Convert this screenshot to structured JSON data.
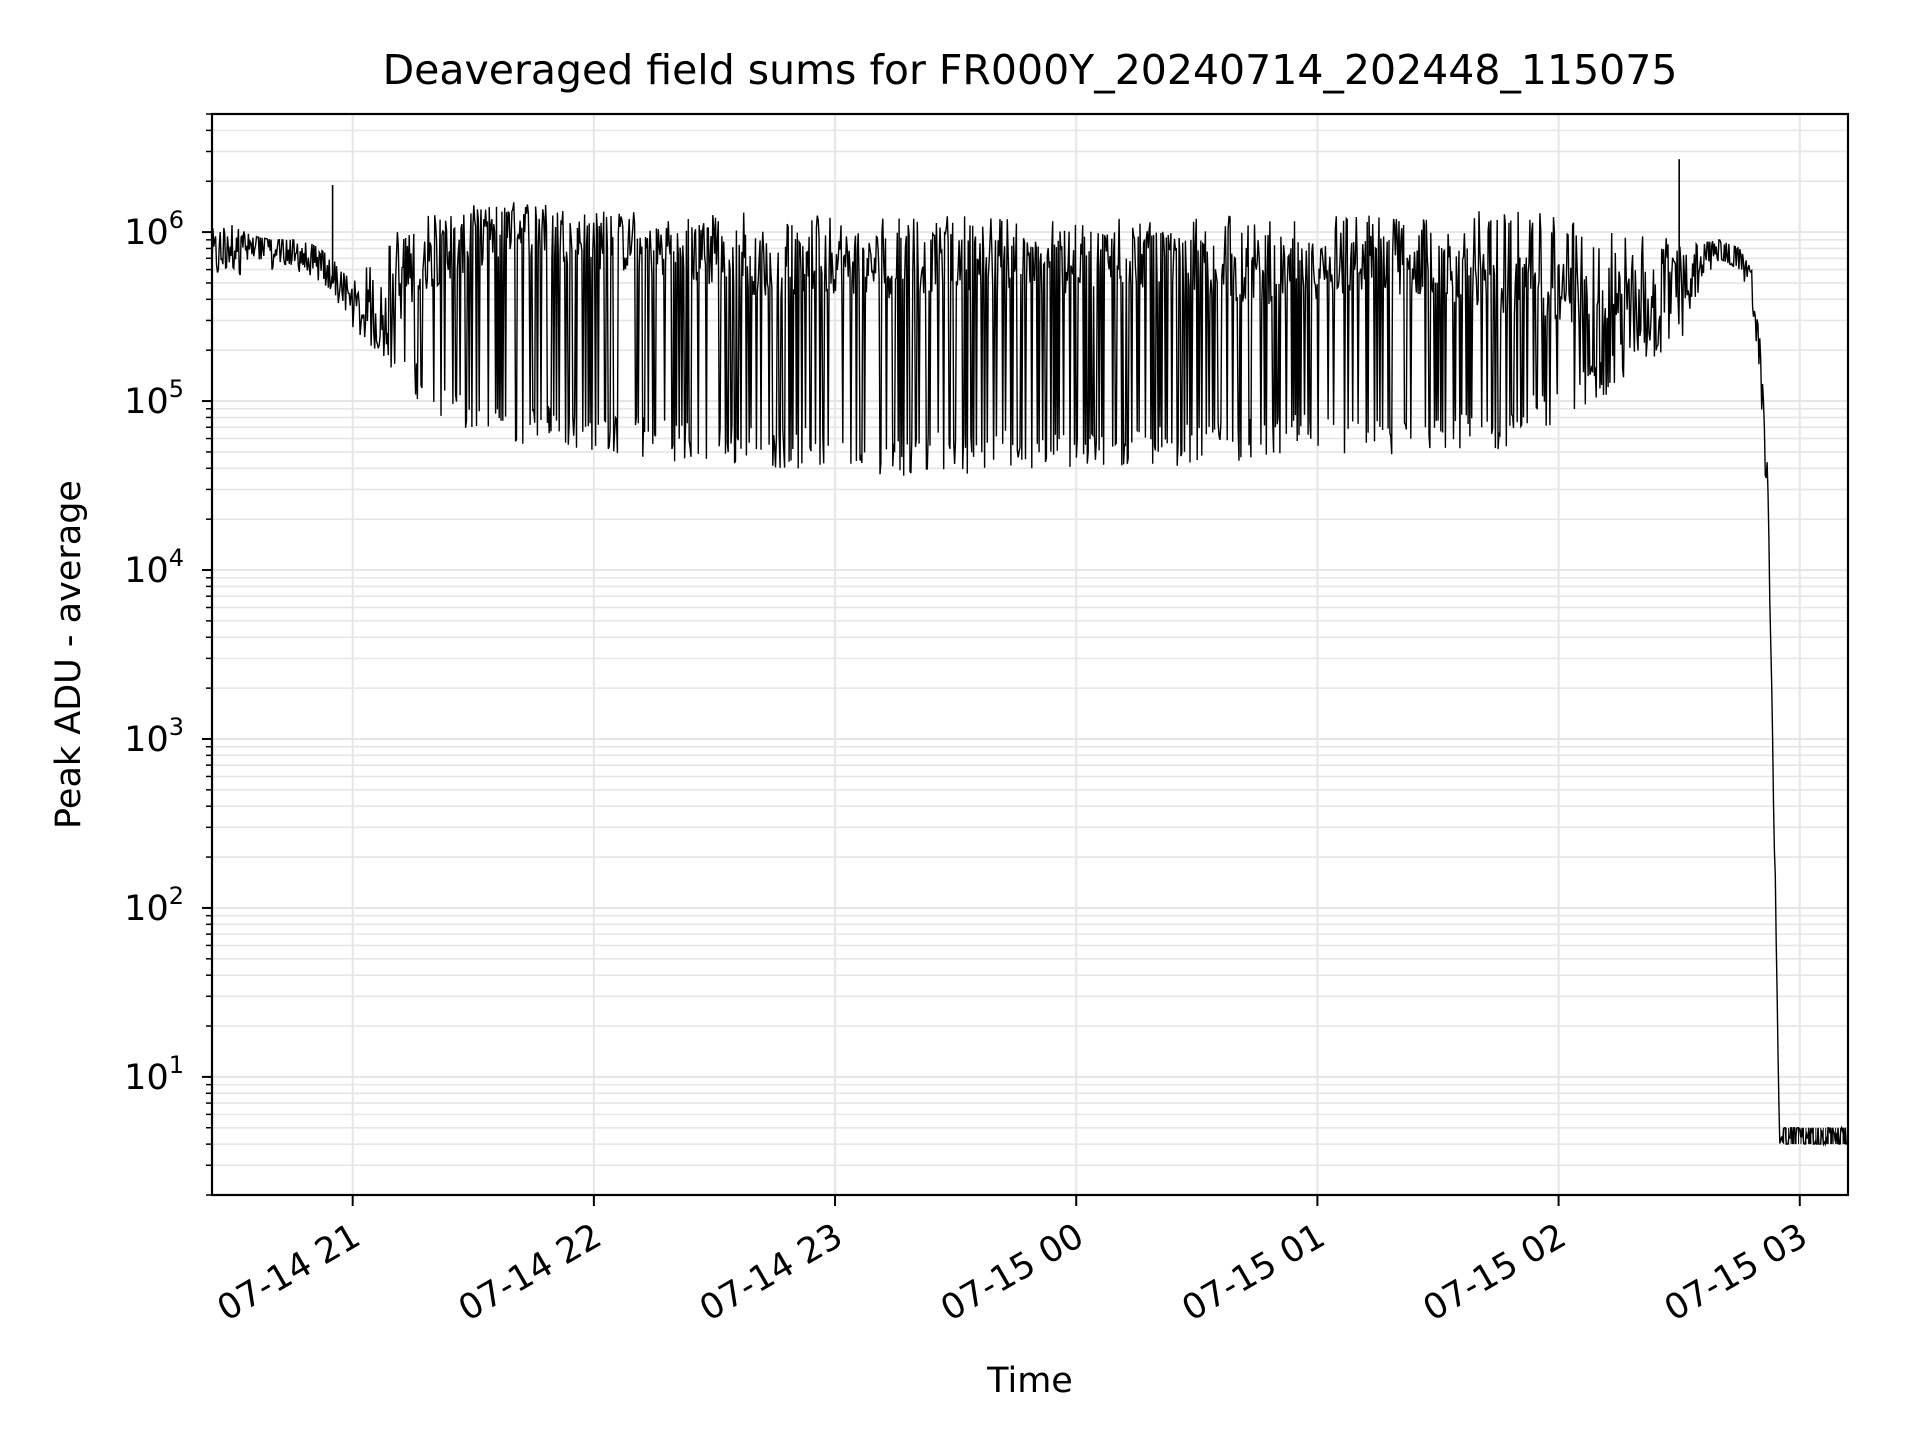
{
  "chart_data": {
    "type": "line",
    "title": "Deaveraged field sums for FR000Y_20240714_202448_115075",
    "xlabel": "Time",
    "ylabel": "Peak ADU - average",
    "yscale": "log",
    "ylim": [
      2,
      5000000
    ],
    "xlim": [
      "2024-07-14 20:25",
      "2024-07-15 03:12"
    ],
    "grid": true,
    "line_color": "#000000",
    "grid_color": "#e6e6e6",
    "x_ticks": [
      {
        "t": "2024-07-14 21:00",
        "label": "07-14 21"
      },
      {
        "t": "2024-07-14 22:00",
        "label": "07-14 22"
      },
      {
        "t": "2024-07-14 23:00",
        "label": "07-14 23"
      },
      {
        "t": "2024-07-15 00:00",
        "label": "07-15 00"
      },
      {
        "t": "2024-07-15 01:00",
        "label": "07-15 01"
      },
      {
        "t": "2024-07-15 02:00",
        "label": "07-15 02"
      },
      {
        "t": "2024-07-15 03:00",
        "label": "07-15 03"
      }
    ],
    "y_ticks": [
      {
        "value": 10,
        "base": "10",
        "exp": "1"
      },
      {
        "value": 100,
        "base": "10",
        "exp": "2"
      },
      {
        "value": 1000,
        "base": "10",
        "exp": "3"
      },
      {
        "value": 10000,
        "base": "10",
        "exp": "4"
      },
      {
        "value": 100000,
        "base": "10",
        "exp": "5"
      },
      {
        "value": 1000000,
        "base": "10",
        "exp": "6"
      }
    ],
    "series": [
      {
        "x": [
          "2024-07-14 20:25",
          "2024-07-14 20:30",
          "2024-07-14 20:35",
          "2024-07-14 20:40",
          "2024-07-14 20:45",
          "2024-07-14 20:50",
          "2024-07-14 20:55",
          "2024-07-14 21:00",
          "2024-07-14 21:05",
          "2024-07-14 21:10",
          "2024-07-14 21:20",
          "2024-07-14 21:30",
          "2024-07-14 21:40",
          "2024-07-14 21:50",
          "2024-07-14 22:00",
          "2024-07-14 22:15",
          "2024-07-14 22:30",
          "2024-07-14 22:45",
          "2024-07-14 23:00",
          "2024-07-14 23:15",
          "2024-07-14 23:30",
          "2024-07-14 23:45",
          "2024-07-15 00:00",
          "2024-07-15 00:15",
          "2024-07-15 00:30",
          "2024-07-15 00:45",
          "2024-07-15 01:00",
          "2024-07-15 01:15",
          "2024-07-15 01:30",
          "2024-07-15 01:45",
          "2024-07-15 02:00",
          "2024-07-15 02:10",
          "2024-07-15 02:20",
          "2024-07-15 02:30",
          "2024-07-15 02:35",
          "2024-07-15 02:40",
          "2024-07-15 02:45",
          "2024-07-15 02:48",
          "2024-07-15 02:50",
          "2024-07-15 02:52",
          "2024-07-15 02:54",
          "2024-07-15 02:55",
          "2024-07-15 02:56",
          "2024-07-15 03:00",
          "2024-07-15 03:05",
          "2024-07-15 03:12"
        ],
        "y": [
          700000,
          850000,
          800000,
          780000,
          750000,
          700000,
          500000,
          350000,
          300000,
          400000,
          700000,
          900000,
          1100000,
          1000000,
          900000,
          800000,
          700000,
          600000,
          650000,
          600000,
          700000,
          600000,
          650000,
          700000,
          600000,
          550000,
          600000,
          650000,
          600000,
          500000,
          450000,
          400000,
          450000,
          500000,
          600000,
          800000,
          700000,
          500000,
          200000,
          30000,
          100,
          4,
          4,
          4,
          4,
          4
        ],
        "lower": [
          550000,
          500000,
          600000,
          600000,
          600000,
          550000,
          450000,
          250000,
          200000,
          150000,
          80000,
          60000,
          55000,
          55000,
          50000,
          45000,
          42000,
          40000,
          38000,
          36000,
          37000,
          38000,
          38000,
          40000,
          42000,
          45000,
          48000,
          45000,
          45000,
          50000,
          70000,
          100000,
          150000,
          200000,
          400000,
          700000,
          600000,
          400000,
          150000,
          20000,
          80,
          4,
          4,
          4,
          4,
          4
        ],
        "upper": [
          1200000,
          1100000,
          950000,
          900000,
          900000,
          850000,
          700000,
          500000,
          700000,
          1000000,
          1300000,
          1500000,
          1500000,
          1500000,
          1400000,
          1400000,
          1350000,
          1300000,
          1300000,
          1250000,
          1250000,
          1200000,
          1200000,
          1250000,
          1250000,
          1250000,
          1300000,
          1300000,
          1350000,
          1400000,
          1300000,
          1100000,
          1000000,
          900000,
          850000,
          900000,
          800000,
          600000,
          250000,
          40000,
          120,
          4,
          5,
          5,
          5,
          5
        ]
      }
    ],
    "spikes": [
      {
        "t": "2024-07-14 20:55",
        "y": 1900000
      },
      {
        "t": "2024-07-15 02:30",
        "y": 2700000
      }
    ]
  }
}
